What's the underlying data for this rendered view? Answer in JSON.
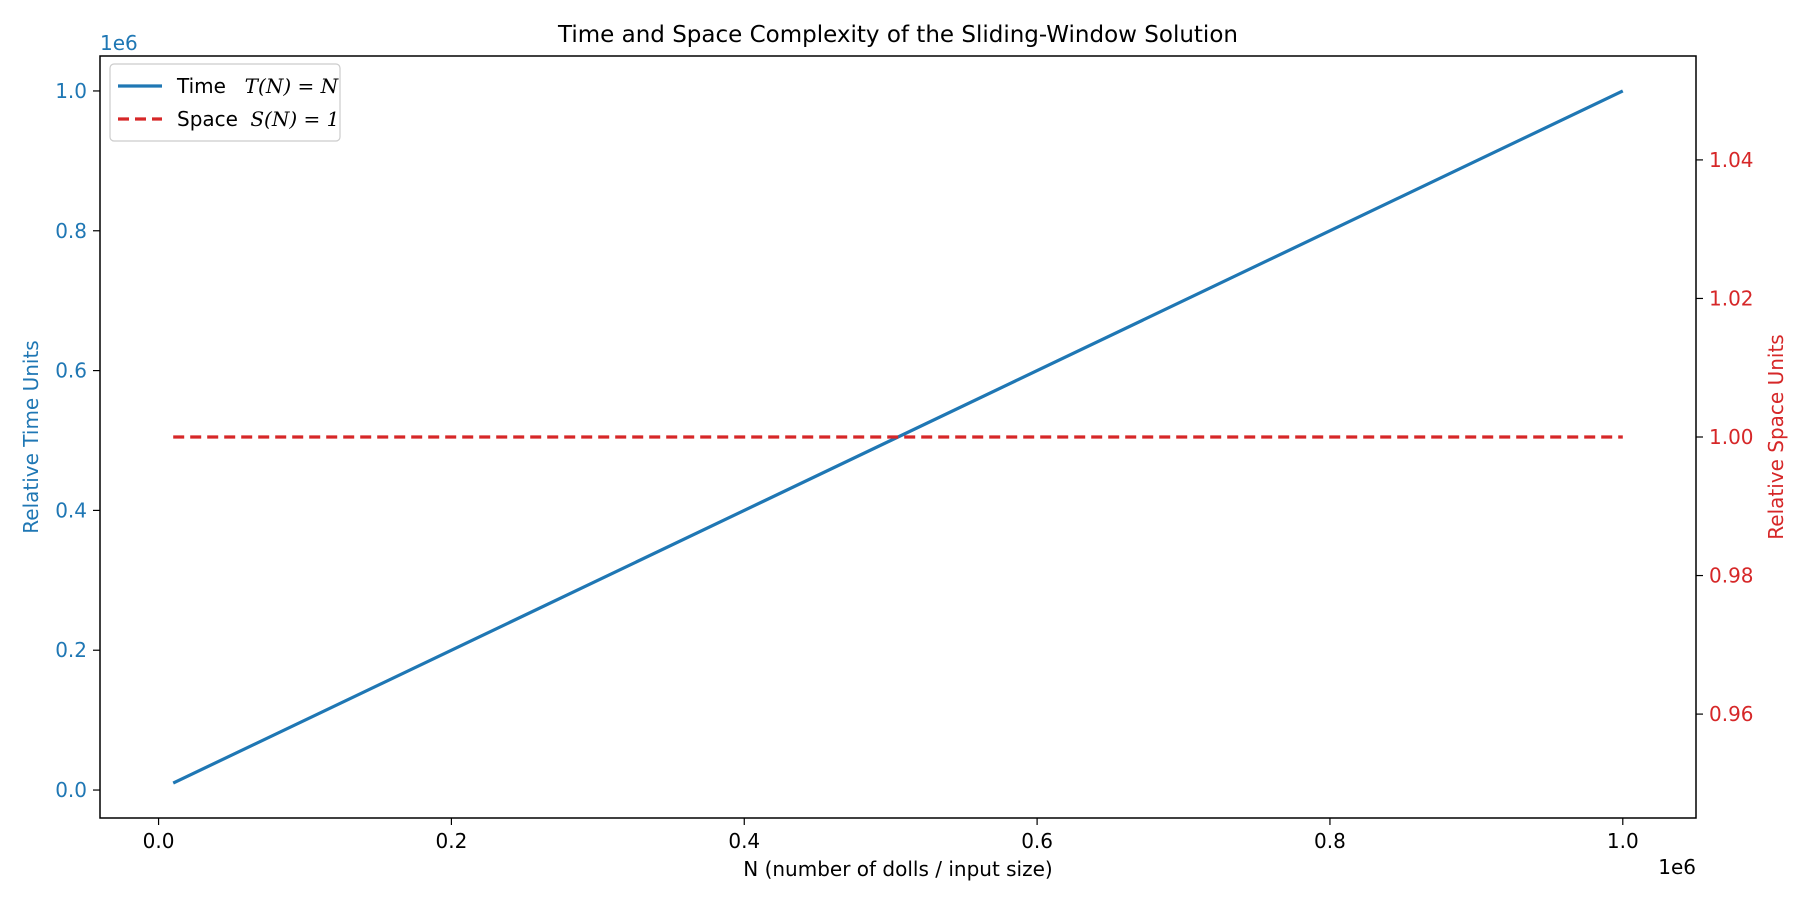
{
  "chart_data": {
    "type": "line",
    "title": "Time and Space Complexity of the Sliding-Window Solution",
    "xlabel": "N  (number of dolls / input size)",
    "ylabel_left": "Relative Time Units",
    "ylabel_right": "Relative Space Units",
    "x_offset_text": "1e6",
    "y_left_offset_text": "1e6",
    "xlim": [
      -40000,
      1050000
    ],
    "ylim_left": [
      -40000,
      1050000
    ],
    "ylim_right": [
      0.945,
      1.055
    ],
    "x_ticks": [
      0,
      200000,
      400000,
      600000,
      800000,
      1000000
    ],
    "x_tick_labels": [
      "0.0",
      "0.2",
      "0.4",
      "0.6",
      "0.8",
      "1.0"
    ],
    "y_left_ticks": [
      0,
      200000,
      400000,
      600000,
      800000,
      1000000
    ],
    "y_left_tick_labels": [
      "0.0",
      "0.2",
      "0.4",
      "0.6",
      "0.8",
      "1.0"
    ],
    "y_right_ticks": [
      0.96,
      0.98,
      1.0,
      1.02,
      1.04
    ],
    "y_right_tick_labels": [
      "0.96",
      "0.98",
      "1.00",
      "1.02",
      "1.04"
    ],
    "grid": false,
    "legend_position": "top-left",
    "series": [
      {
        "name_prefix": "Time  ",
        "name_math": "T(N) = N",
        "axis": "left",
        "color": "#1f77b4",
        "style": "solid",
        "x": [
          10000,
          1000000
        ],
        "y": [
          10000,
          1000000
        ]
      },
      {
        "name_prefix": "Space ",
        "name_math": "S(N) = 1",
        "axis": "right",
        "color": "#d62728",
        "style": "dashed",
        "x": [
          10000,
          1000000
        ],
        "y": [
          1.0,
          1.0
        ]
      }
    ],
    "colors": {
      "left_axis": "#1f77b4",
      "right_axis": "#d62728",
      "frame": "#000000"
    }
  }
}
